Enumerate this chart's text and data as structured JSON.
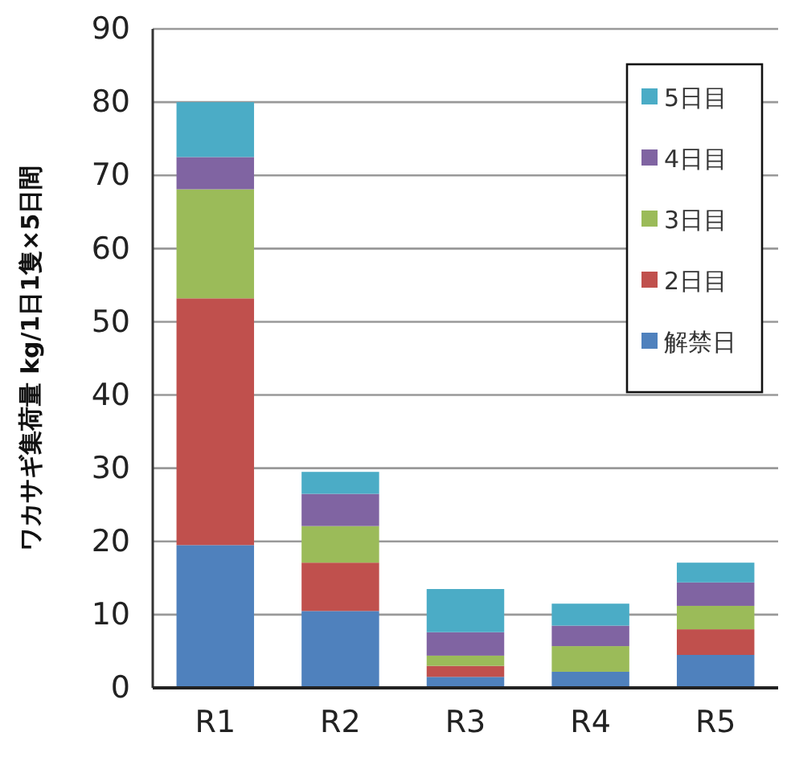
{
  "chart_data": {
    "type": "bar",
    "stacked": true,
    "ylabel": "ワカサギ集荷量 kg/1日1隻×5日間",
    "categories": [
      "R1",
      "R2",
      "R3",
      "R4",
      "R5"
    ],
    "series": [
      {
        "name": "解禁日",
        "color": "#4f81bd",
        "values": [
          19.5,
          10.5,
          1.5,
          2.2,
          4.5
        ]
      },
      {
        "name": "2日目",
        "color": "#c0504d",
        "values": [
          33.7,
          6.6,
          1.5,
          0,
          3.5
        ]
      },
      {
        "name": "3日目",
        "color": "#9bbb59",
        "values": [
          14.9,
          5.0,
          1.4,
          3.5,
          3.2
        ]
      },
      {
        "name": "4日目",
        "color": "#8064a2",
        "values": [
          4.4,
          4.4,
          3.2,
          2.8,
          3.2
        ]
      },
      {
        "name": "5日目",
        "color": "#4bacc6",
        "values": [
          7.5,
          3.0,
          5.9,
          3.0,
          2.7
        ]
      }
    ],
    "ylim": [
      0,
      90
    ],
    "yticks": [
      0,
      10,
      20,
      30,
      40,
      50,
      60,
      70,
      80,
      90
    ],
    "grid": "y",
    "legend": "top right"
  }
}
